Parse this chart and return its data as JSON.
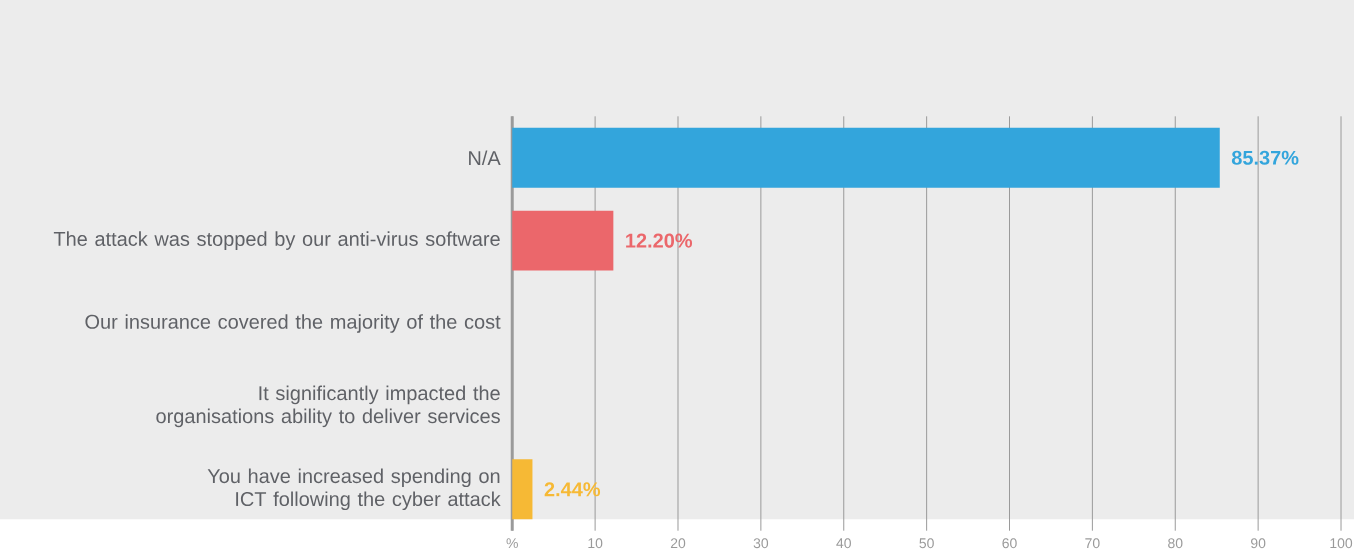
{
  "chart_data": {
    "type": "bar",
    "orientation": "horizontal",
    "categories": [
      "N/A",
      "The attack was stopped by our anti-virus software",
      "Our insurance covered the majority of the cost",
      "It significantly impacted the organisations ability to deliver services",
      "You have increased spending on ICT following the cyber attack"
    ],
    "values": [
      85.37,
      12.2,
      0,
      0,
      2.44
    ],
    "colors": [
      "#33a5dc",
      "#eb676b",
      "#eb676b",
      "#eb676b",
      "#f6b935"
    ],
    "value_labels": [
      "85.37%",
      "12.20%",
      null,
      null,
      "2.44%"
    ],
    "xlim": [
      0,
      100
    ],
    "xticks": [
      {
        "value": 0,
        "label": "%"
      },
      10,
      20,
      30,
      40,
      50,
      60,
      70,
      80,
      90,
      100
    ],
    "grid": "x"
  }
}
